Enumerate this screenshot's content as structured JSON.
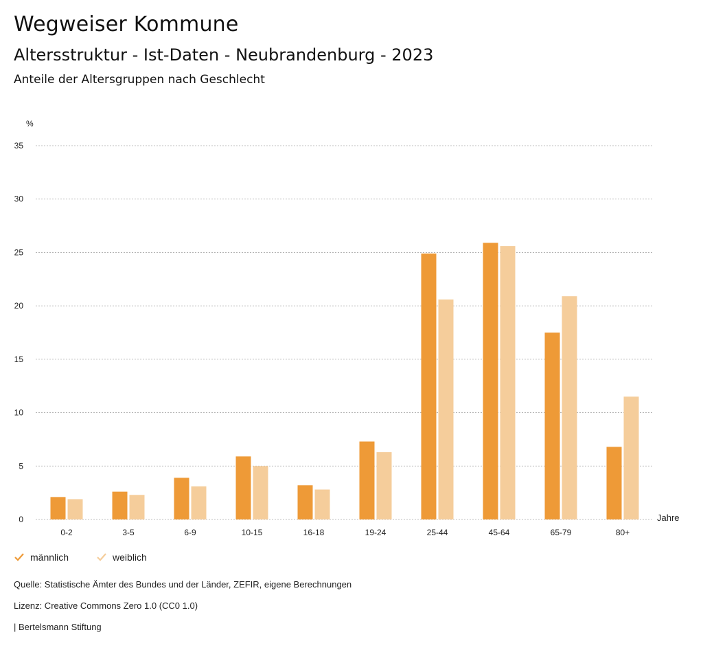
{
  "header": {
    "title": "Wegweiser Kommune",
    "subtitle": "Altersstruktur - Ist-Daten - Neubrandenburg - 2023",
    "description": "Anteile der Altersgruppen nach Geschlecht"
  },
  "colors": {
    "maennlich": "#ee9a37",
    "weiblich": "#f5cd9b",
    "grid": "#aaaaaa"
  },
  "chart_data": {
    "type": "bar",
    "ylabel": "%",
    "xlabel": "Jahre",
    "ylim": [
      0,
      35
    ],
    "yticks": [
      0,
      5,
      10,
      15,
      20,
      25,
      30,
      35
    ],
    "grid": true,
    "legend_position": "bottom-left",
    "categories": [
      "0-2",
      "3-5",
      "6-9",
      "10-15",
      "16-18",
      "19-24",
      "25-44",
      "45-64",
      "65-79",
      "80+"
    ],
    "series": [
      {
        "name": "männlich",
        "values": [
          2.1,
          2.6,
          3.9,
          5.9,
          3.2,
          7.3,
          24.9,
          25.9,
          17.5,
          6.8
        ]
      },
      {
        "name": "weiblich",
        "values": [
          1.9,
          2.3,
          3.1,
          5.0,
          2.8,
          6.3,
          20.6,
          25.6,
          20.9,
          11.5
        ]
      }
    ]
  },
  "footer": {
    "source": "Quelle: Statistische Ämter des Bundes und der Länder, ZEFIR, eigene Berechnungen",
    "license": "Lizenz: Creative Commons Zero 1.0 (CC0 1.0)",
    "publisher": "| Bertelsmann Stiftung"
  }
}
